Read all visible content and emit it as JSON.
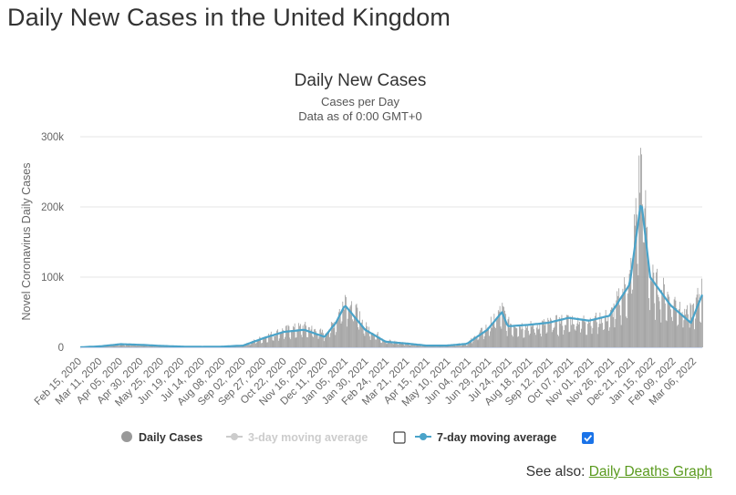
{
  "page": {
    "heading": "Daily New Cases in the United Kingdom",
    "see_also_label": "See also:",
    "see_also_link": "Daily Deaths Graph"
  },
  "chart_data": {
    "type": "bar",
    "title": "Daily New Cases",
    "subtitle_lines": [
      "Cases per Day",
      "Data as of 0:00 GMT+0"
    ],
    "xlabel": "",
    "ylabel": "Novel Coronavirus Daily Cases",
    "ylim": [
      0,
      300000
    ],
    "yticks": [
      0,
      100000,
      200000,
      300000
    ],
    "ytick_labels": [
      "0",
      "100k",
      "200k",
      "300k"
    ],
    "x_start": "2020-02-15",
    "x_end": "2022-03-20",
    "x_tick_labels": [
      "Feb 15, 2020",
      "Mar 11, 2020",
      "Apr 05, 2020",
      "Apr 30, 2020",
      "May 25, 2020",
      "Jun 19, 2020",
      "Jul 14, 2020",
      "Aug 08, 2020",
      "Sep 02, 2020",
      "Sep 27, 2020",
      "Oct 22, 2020",
      "Nov 16, 2020",
      "Dec 11, 2020",
      "Jan 05, 2021",
      "Jan 30, 2021",
      "Feb 24, 2021",
      "Mar 21, 2021",
      "Apr 15, 2021",
      "May 10, 2021",
      "Jun 04, 2021",
      "Jun 29, 2021",
      "Jul 24, 2021",
      "Aug 18, 2021",
      "Sep 12, 2021",
      "Oct 07, 2021",
      "Nov 01, 2021",
      "Nov 26, 2021",
      "Dec 21, 2021",
      "Jan 15, 2022",
      "Feb 09, 2022",
      "Mar 06, 2022"
    ],
    "grid": true,
    "legend_placement": "bottom",
    "series": [
      {
        "name": "Daily Cases",
        "kind": "bar",
        "color": "#999999",
        "x": [
          "2020-02-15",
          "2020-03-11",
          "2020-04-05",
          "2020-04-30",
          "2020-05-25",
          "2020-06-19",
          "2020-07-14",
          "2020-08-08",
          "2020-09-02",
          "2020-09-27",
          "2020-10-22",
          "2020-11-16",
          "2020-12-11",
          "2020-12-25",
          "2021-01-05",
          "2021-01-30",
          "2021-02-24",
          "2021-03-21",
          "2021-04-15",
          "2021-05-10",
          "2021-06-04",
          "2021-06-29",
          "2021-07-17",
          "2021-07-24",
          "2021-08-18",
          "2021-09-12",
          "2021-10-07",
          "2021-11-01",
          "2021-11-26",
          "2021-12-21",
          "2022-01-04",
          "2022-01-15",
          "2022-02-09",
          "2022-03-06",
          "2022-03-20"
        ],
        "values": [
          0,
          2000,
          5000,
          4000,
          2000,
          1000,
          700,
          1000,
          3000,
          15000,
          25000,
          30000,
          20000,
          40000,
          75000,
          30000,
          10000,
          6000,
          2500,
          2500,
          6000,
          30000,
          55000,
          35000,
          30000,
          35000,
          40000,
          40000,
          45000,
          100000,
          270000,
          100000,
          70000,
          50000,
          85000
        ]
      },
      {
        "name": "3-day moving average",
        "kind": "line",
        "color": "#cccccc",
        "enabled": false
      },
      {
        "name": "7-day moving average",
        "kind": "line",
        "color": "#4aa3c9",
        "enabled": true,
        "x": [
          "2020-02-15",
          "2020-03-11",
          "2020-04-05",
          "2020-04-30",
          "2020-05-25",
          "2020-06-19",
          "2020-07-14",
          "2020-08-08",
          "2020-09-02",
          "2020-09-27",
          "2020-10-22",
          "2020-11-16",
          "2020-12-11",
          "2020-12-25",
          "2021-01-05",
          "2021-01-30",
          "2021-02-24",
          "2021-03-21",
          "2021-04-15",
          "2021-05-10",
          "2021-06-04",
          "2021-06-29",
          "2021-07-17",
          "2021-07-24",
          "2021-08-18",
          "2021-09-12",
          "2021-10-07",
          "2021-11-01",
          "2021-11-26",
          "2021-12-21",
          "2022-01-04",
          "2022-01-15",
          "2022-02-09",
          "2022-03-06",
          "2022-03-20"
        ],
        "values": [
          0,
          1500,
          4500,
          3500,
          2000,
          1000,
          700,
          1000,
          2500,
          13000,
          22000,
          25000,
          15000,
          35000,
          60000,
          25000,
          8000,
          5500,
          2500,
          2500,
          5000,
          25000,
          50000,
          30000,
          32000,
          35000,
          42000,
          38000,
          45000,
          90000,
          210000,
          100000,
          60000,
          35000,
          75000
        ]
      }
    ]
  }
}
